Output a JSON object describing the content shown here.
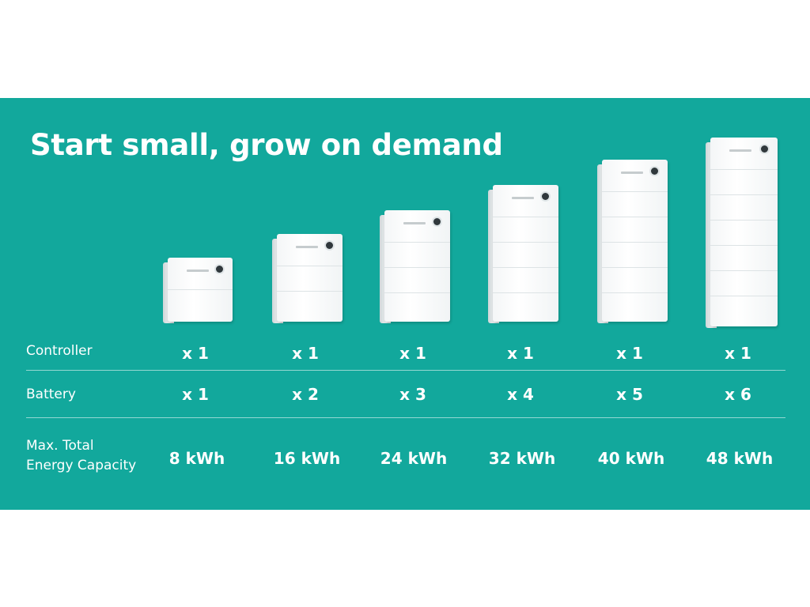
{
  "banner": {
    "title": "Start small, grow on demand",
    "background_color": "#12a89c"
  },
  "units": [
    {
      "battery_modules": 1
    },
    {
      "battery_modules": 2
    },
    {
      "battery_modules": 3
    },
    {
      "battery_modules": 4
    },
    {
      "battery_modules": 5
    },
    {
      "battery_modules": 6
    }
  ],
  "table": {
    "controller": {
      "label": "Controller",
      "values": [
        "x 1",
        "x 1",
        "x 1",
        "x 1",
        "x 1",
        "x 1"
      ]
    },
    "battery": {
      "label": "Battery",
      "values": [
        "x 1",
        "x 2",
        "x 3",
        "x 4",
        "x 5",
        "x 6"
      ]
    },
    "capacity": {
      "label_line1": "Max. Total",
      "label_line2": "Energy Capacity",
      "values": [
        "8 kWh",
        "16 kWh",
        "24 kWh",
        "32 kWh",
        "40 kWh",
        "48 kWh"
      ]
    }
  }
}
